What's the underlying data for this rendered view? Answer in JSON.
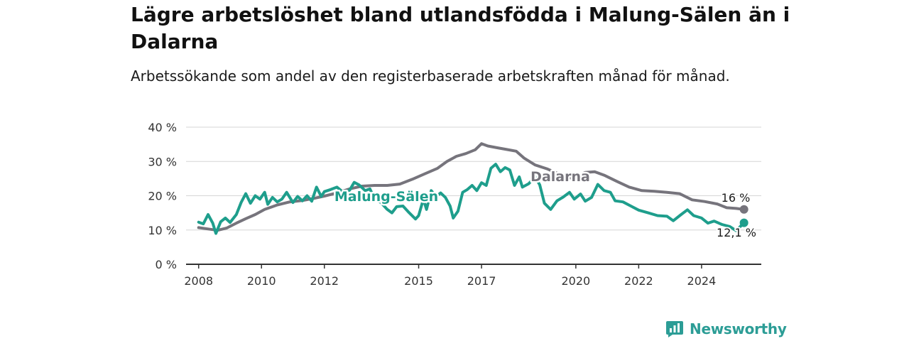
{
  "header": {
    "title": "Lägre arbetslöshet bland utlandsfödda i Malung-Sälen än i Dalarna",
    "subtitle": "Arbetssökande som andel av den registerbaserade arbetskraften månad för månad."
  },
  "brand": {
    "name": "Newsworthy",
    "color": "#2c9d96",
    "icon": "newsworthy-logo-icon"
  },
  "chart_data": {
    "type": "line",
    "title": "Lägre arbetslöshet bland utlandsfödda i Malung-Sälen än i Dalarna",
    "subtitle": "Arbetssökande som andel av den registerbaserade arbetskraften månad för månad.",
    "xlabel": "",
    "ylabel": "",
    "x_ticks": [
      "2008",
      "2010",
      "2012",
      "2015",
      "2017",
      "2020",
      "2022",
      "2024"
    ],
    "y_ticks": [
      "0 %",
      "10 %",
      "20 %",
      "30 %",
      "40 %"
    ],
    "ylim": [
      0,
      40
    ],
    "xlim": [
      2007.6,
      2025.9
    ],
    "grid": true,
    "legend": "inline labels",
    "series": [
      {
        "name": "Dalarna",
        "color": "#76747c",
        "end_label": "16 %",
        "points": [
          [
            2008.0,
            10.7
          ],
          [
            2008.3,
            10.3
          ],
          [
            2008.6,
            9.9
          ],
          [
            2008.9,
            10.6
          ],
          [
            2009.2,
            12.0
          ],
          [
            2009.5,
            13.3
          ],
          [
            2009.8,
            14.5
          ],
          [
            2010.1,
            16.0
          ],
          [
            2010.5,
            17.3
          ],
          [
            2010.9,
            18.2
          ],
          [
            2011.3,
            18.6
          ],
          [
            2011.7,
            19.3
          ],
          [
            2012.0,
            19.9
          ],
          [
            2012.4,
            20.8
          ],
          [
            2012.8,
            22.0
          ],
          [
            2013.2,
            22.8
          ],
          [
            2013.6,
            23.0
          ],
          [
            2014.0,
            23.0
          ],
          [
            2014.4,
            23.4
          ],
          [
            2014.8,
            24.8
          ],
          [
            2015.2,
            26.4
          ],
          [
            2015.6,
            28.0
          ],
          [
            2015.9,
            30.0
          ],
          [
            2016.2,
            31.5
          ],
          [
            2016.5,
            32.3
          ],
          [
            2016.8,
            33.4
          ],
          [
            2017.0,
            35.2
          ],
          [
            2017.2,
            34.5
          ],
          [
            2017.5,
            34.0
          ],
          [
            2017.8,
            33.5
          ],
          [
            2018.1,
            33.0
          ],
          [
            2018.35,
            31.0
          ],
          [
            2018.7,
            29.0
          ],
          [
            2019.1,
            27.8
          ],
          [
            2019.5,
            26.2
          ],
          [
            2019.9,
            25.0
          ],
          [
            2020.3,
            26.8
          ],
          [
            2020.6,
            27.0
          ],
          [
            2020.9,
            26.0
          ],
          [
            2021.3,
            24.2
          ],
          [
            2021.7,
            22.5
          ],
          [
            2022.1,
            21.5
          ],
          [
            2022.5,
            21.3
          ],
          [
            2022.9,
            21.0
          ],
          [
            2023.3,
            20.6
          ],
          [
            2023.7,
            18.8
          ],
          [
            2024.1,
            18.3
          ],
          [
            2024.5,
            17.6
          ],
          [
            2024.8,
            16.5
          ],
          [
            2025.1,
            16.3
          ],
          [
            2025.35,
            16.0
          ]
        ]
      },
      {
        "name": "Malung-Sälen",
        "color": "#1e9e8c",
        "end_label": "12,1 %",
        "points": [
          [
            2008.0,
            12.3
          ],
          [
            2008.15,
            11.8
          ],
          [
            2008.3,
            14.5
          ],
          [
            2008.45,
            12.0
          ],
          [
            2008.55,
            9.0
          ],
          [
            2008.7,
            12.4
          ],
          [
            2008.85,
            13.5
          ],
          [
            2009.0,
            12.2
          ],
          [
            2009.2,
            14.5
          ],
          [
            2009.35,
            18.0
          ],
          [
            2009.5,
            20.6
          ],
          [
            2009.65,
            17.8
          ],
          [
            2009.8,
            20.0
          ],
          [
            2009.95,
            19.0
          ],
          [
            2010.1,
            21.0
          ],
          [
            2010.2,
            17.5
          ],
          [
            2010.35,
            19.5
          ],
          [
            2010.5,
            18.2
          ],
          [
            2010.65,
            19.0
          ],
          [
            2010.8,
            21.0
          ],
          [
            2011.0,
            18.0
          ],
          [
            2011.15,
            19.8
          ],
          [
            2011.3,
            18.5
          ],
          [
            2011.45,
            20.0
          ],
          [
            2011.6,
            18.4
          ],
          [
            2011.75,
            22.5
          ],
          [
            2011.9,
            19.8
          ],
          [
            2012.0,
            21.2
          ],
          [
            2012.2,
            21.8
          ],
          [
            2012.4,
            22.5
          ],
          [
            2012.6,
            21.0
          ],
          [
            2012.8,
            21.6
          ],
          [
            2012.95,
            23.9
          ],
          [
            2013.1,
            23.2
          ],
          [
            2013.3,
            21.5
          ],
          [
            2013.45,
            22.0
          ],
          [
            2013.6,
            19.0
          ],
          [
            2013.8,
            18.0
          ],
          [
            2014.0,
            16.0
          ],
          [
            2014.15,
            15.0
          ],
          [
            2014.3,
            16.8
          ],
          [
            2014.5,
            17.0
          ],
          [
            2014.7,
            15.0
          ],
          [
            2014.9,
            13.2
          ],
          [
            2015.0,
            14.2
          ],
          [
            2015.15,
            19.0
          ],
          [
            2015.25,
            16.0
          ],
          [
            2015.4,
            21.5
          ],
          [
            2015.55,
            19.8
          ],
          [
            2015.7,
            20.8
          ],
          [
            2015.85,
            19.5
          ],
          [
            2016.0,
            17.0
          ],
          [
            2016.1,
            13.5
          ],
          [
            2016.25,
            15.5
          ],
          [
            2016.4,
            21.0
          ],
          [
            2016.55,
            21.8
          ],
          [
            2016.7,
            23.0
          ],
          [
            2016.85,
            21.5
          ],
          [
            2017.0,
            23.8
          ],
          [
            2017.15,
            23.0
          ],
          [
            2017.3,
            28.0
          ],
          [
            2017.45,
            29.2
          ],
          [
            2017.6,
            27.0
          ],
          [
            2017.75,
            28.2
          ],
          [
            2017.9,
            27.5
          ],
          [
            2018.05,
            23.0
          ],
          [
            2018.2,
            25.5
          ],
          [
            2018.3,
            22.5
          ],
          [
            2018.5,
            23.5
          ],
          [
            2018.7,
            25.5
          ],
          [
            2018.85,
            23.2
          ],
          [
            2019.0,
            17.8
          ],
          [
            2019.2,
            16.0
          ],
          [
            2019.4,
            18.5
          ],
          [
            2019.6,
            19.6
          ],
          [
            2019.8,
            21.0
          ],
          [
            2019.95,
            19.0
          ],
          [
            2020.15,
            20.5
          ],
          [
            2020.3,
            18.4
          ],
          [
            2020.5,
            19.5
          ],
          [
            2020.7,
            23.3
          ],
          [
            2020.9,
            21.5
          ],
          [
            2021.1,
            21.0
          ],
          [
            2021.25,
            18.5
          ],
          [
            2021.5,
            18.2
          ],
          [
            2021.75,
            17.0
          ],
          [
            2022.0,
            15.8
          ],
          [
            2022.3,
            15.0
          ],
          [
            2022.6,
            14.2
          ],
          [
            2022.9,
            14.0
          ],
          [
            2023.1,
            12.7
          ],
          [
            2023.35,
            14.5
          ],
          [
            2023.55,
            15.9
          ],
          [
            2023.75,
            14.2
          ],
          [
            2024.0,
            13.5
          ],
          [
            2024.2,
            12.0
          ],
          [
            2024.4,
            12.6
          ],
          [
            2024.65,
            11.6
          ],
          [
            2024.9,
            11.0
          ],
          [
            2025.1,
            9.8
          ],
          [
            2025.35,
            12.1
          ]
        ]
      }
    ]
  }
}
